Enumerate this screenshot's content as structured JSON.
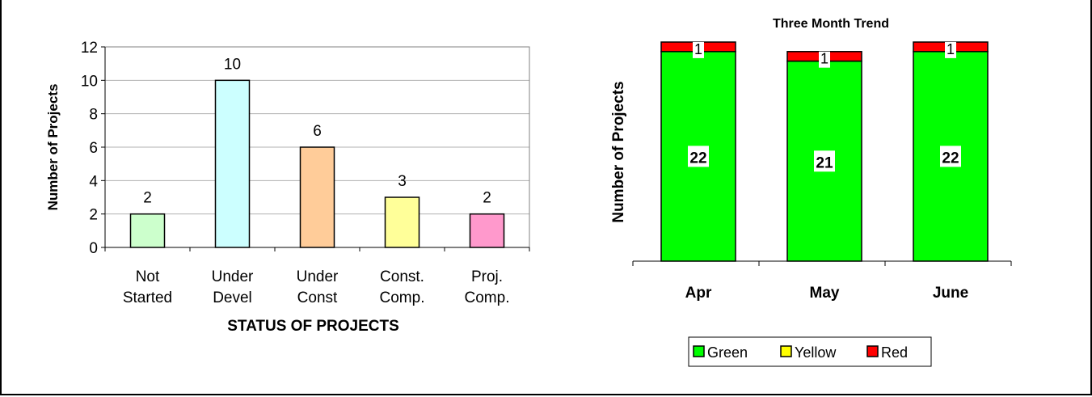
{
  "chart_data": [
    {
      "type": "bar",
      "title": "",
      "xlabel": "STATUS OF PROJECTS",
      "ylabel": "Number of Projects",
      "ylim": [
        0,
        12
      ],
      "yticks": [
        "0",
        "2",
        "4",
        "6",
        "8",
        "10",
        "12"
      ],
      "grid": true,
      "categories": [
        [
          "Not",
          "Started"
        ],
        [
          "Under",
          "Devel"
        ],
        [
          "Under",
          "Const"
        ],
        [
          "Const.",
          "Comp."
        ],
        [
          "Proj.",
          "Comp."
        ]
      ],
      "values": [
        2,
        10,
        6,
        3,
        2
      ],
      "bar_colors": [
        "#ccffcc",
        "#ccffff",
        "#ffcc99",
        "#ffff99",
        "#ff99cc"
      ]
    },
    {
      "type": "bar",
      "stacked": true,
      "title": "Three Month Trend",
      "xlabel": "",
      "ylabel": "Number of Projects",
      "categories": [
        "Apr",
        "May",
        "June"
      ],
      "series": [
        {
          "name": "Green",
          "color": "#00ff00",
          "values": [
            22,
            21,
            22
          ]
        },
        {
          "name": "Yellow",
          "color": "#ffff00",
          "values": [
            0,
            0,
            0
          ]
        },
        {
          "name": "Red",
          "color": "#ff0000",
          "values": [
            1,
            1,
            1
          ]
        }
      ],
      "legend": "bottom"
    }
  ]
}
